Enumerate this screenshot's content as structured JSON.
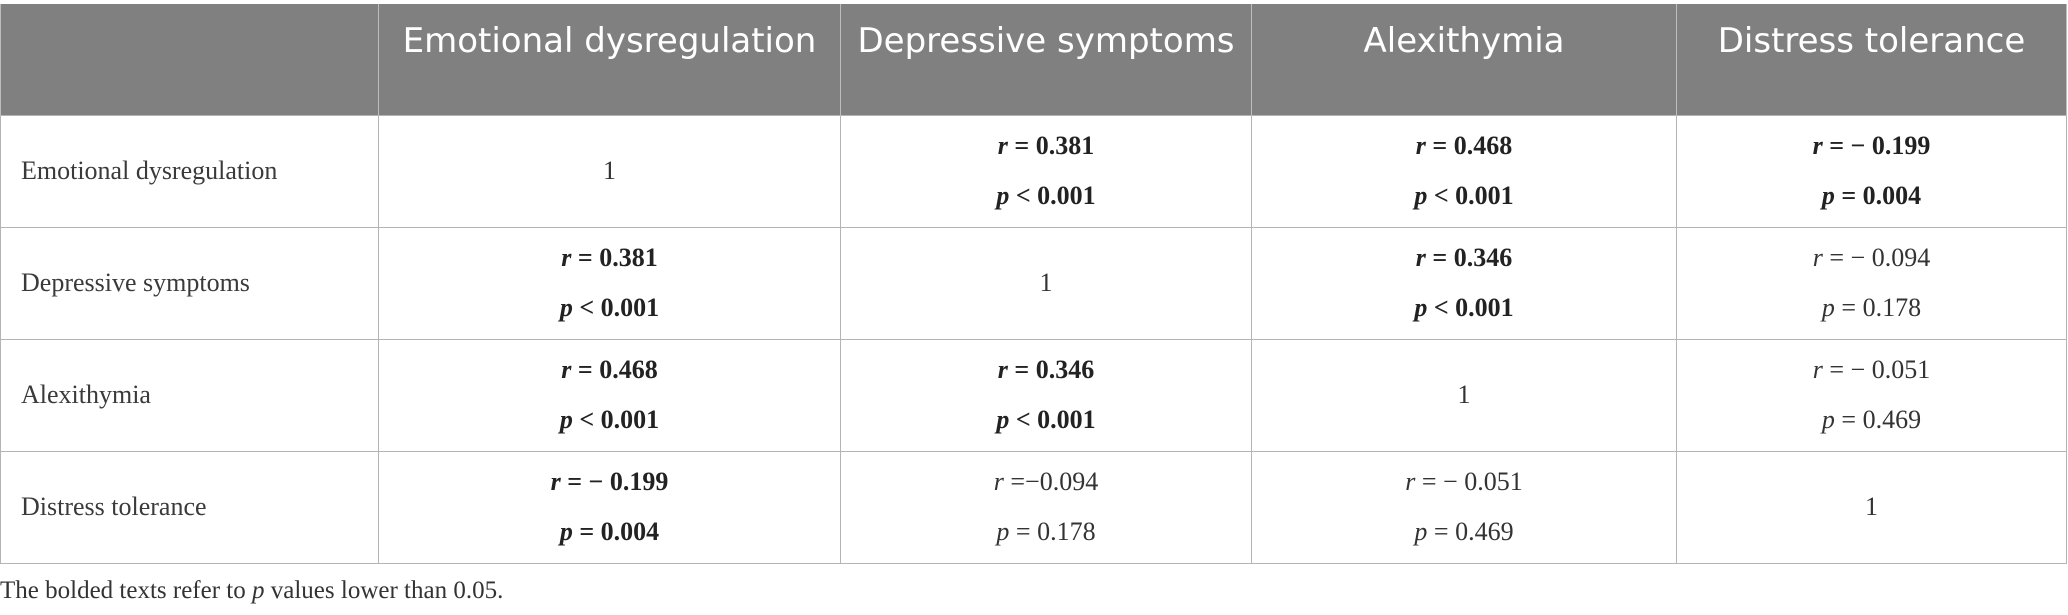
{
  "table": {
    "headers": [
      "",
      "Emotional dysregulation",
      "Depressive symptoms",
      "Alexithymia",
      "Distress tolerance"
    ],
    "rows": [
      {
        "label": "Emotional dysregulation",
        "cells": [
          {
            "single": "1"
          },
          {
            "r_sym": "r",
            "r_text": " = 0.381",
            "p_sym": "p",
            "p_text": " < 0.001",
            "bold": true
          },
          {
            "r_sym": "r",
            "r_text": " = 0.468",
            "p_sym": "p",
            "p_text": " < 0.001",
            "bold": true
          },
          {
            "r_sym": "r",
            "r_text": " = − 0.199",
            "p_sym": "p",
            "p_text": " = 0.004",
            "bold": true
          }
        ]
      },
      {
        "label": "Depressive symptoms",
        "cells": [
          {
            "r_sym": "r",
            "r_text": " = 0.381",
            "p_sym": "p",
            "p_text": " < 0.001",
            "bold": true
          },
          {
            "single": "1"
          },
          {
            "r_sym": "r",
            "r_text": " = 0.346",
            "p_sym": "p",
            "p_text": " < 0.001",
            "bold": true
          },
          {
            "r_sym": "r",
            "r_text": " = − 0.094",
            "p_sym": "p",
            "p_text": " = 0.178",
            "bold": false
          }
        ]
      },
      {
        "label": "Alexithymia",
        "cells": [
          {
            "r_sym": "r",
            "r_text": " = 0.468",
            "p_sym": "p",
            "p_text": " < 0.001",
            "bold": true
          },
          {
            "r_sym": "r",
            "r_text": " = 0.346",
            "p_sym": "p",
            "p_text": " < 0.001",
            "bold": true
          },
          {
            "single": "1"
          },
          {
            "r_sym": "r",
            "r_text": " = − 0.051",
            "p_sym": "p",
            "p_text": " = 0.469",
            "bold": false
          }
        ]
      },
      {
        "label": "Distress tolerance",
        "cells": [
          {
            "r_sym": "r",
            "r_text": " = − 0.199",
            "p_sym": "p",
            "p_text": " = 0.004",
            "bold": true
          },
          {
            "r_sym": "r",
            "r_text": " =−0.094",
            "p_sym": "p",
            "p_text": " = 0.178",
            "bold": false
          },
          {
            "r_sym": "r",
            "r_text": " = − 0.051",
            "p_sym": "p",
            "p_text": " = 0.469",
            "bold": false
          },
          {
            "single": "1"
          }
        ]
      }
    ]
  },
  "note": {
    "before": "The bolded texts refer to ",
    "italic": "p",
    "after": " values lower than 0.05."
  }
}
